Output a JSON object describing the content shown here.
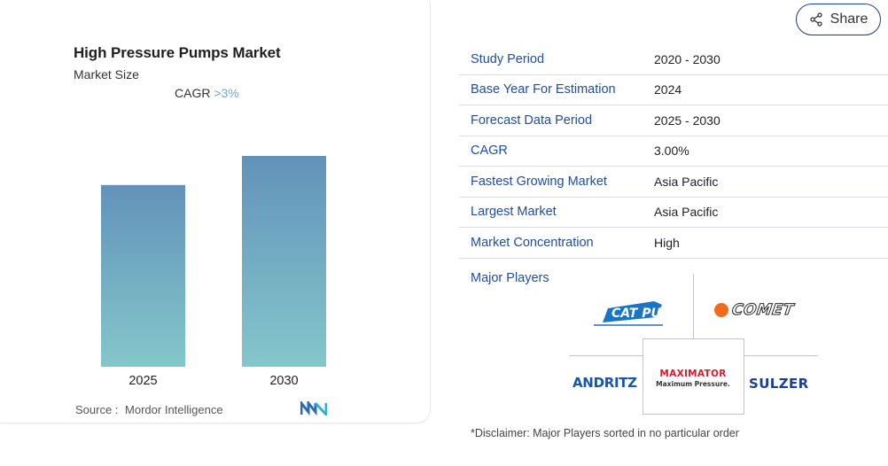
{
  "chart_card": {
    "title": "High Pressure Pumps Market",
    "subtitle": "Market Size",
    "cagr_label": "CAGR",
    "cagr_value": ">3%",
    "source_label": "Source :",
    "source_value": "Mordor Intelligence",
    "source_logo_icon": "mordor-intelligence-logo"
  },
  "chart_data": {
    "type": "bar",
    "categories": [
      "2025",
      "2030"
    ],
    "values": [
      1.0,
      1.16
    ],
    "title": "High Pressure Pumps Market",
    "subtitle": "Market Size",
    "xlabel": "",
    "ylabel": "",
    "grid": false,
    "legend": "none",
    "colors": {
      "bar_top": "#6392ba",
      "bar_bottom": "#84c7cb"
    }
  },
  "share": {
    "label": "Share",
    "icon": "share-icon"
  },
  "info_table": [
    {
      "key": "Study Period",
      "value": "2020 - 2030"
    },
    {
      "key": "Base Year For Estimation",
      "value": "2024"
    },
    {
      "key": "Forecast Data Period",
      "value": "2025 - 2030"
    },
    {
      "key": "CAGR",
      "value": "3.00%"
    },
    {
      "key": "Fastest Growing Market",
      "value": "Asia Pacific"
    },
    {
      "key": "Largest Market",
      "value": "Asia Pacific"
    },
    {
      "key": "Market Concentration",
      "value": "High"
    }
  ],
  "players": {
    "label": "Major Players",
    "cat": "CAT PUMPS",
    "comet": "COMET",
    "andritz": "ANDRITZ",
    "maximator_1": "MAXIMATOR",
    "maximator_2": "Maximum Pressure.",
    "sulzer": "SULZER"
  },
  "disclaimer": "*Disclaimer: Major Players sorted in no particular order",
  "colors": {
    "accent_blue": "#1f4e9a",
    "cagr_accent": "#6fa9c6",
    "comet_orange": "#f26a1b",
    "maximator_red": "#d3202f"
  }
}
